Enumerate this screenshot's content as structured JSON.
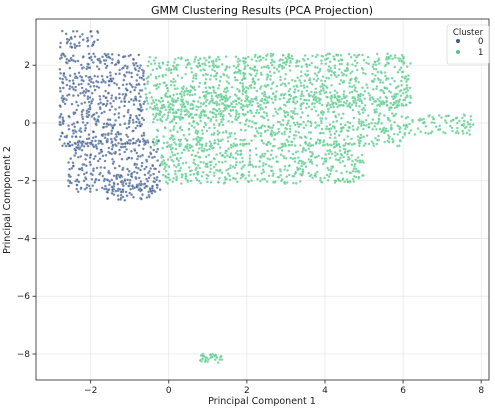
{
  "chart_data": {
    "type": "scatter",
    "title": "GMM Clustering Results (PCA Projection)",
    "xlabel": "Principal Component 1",
    "ylabel": "Principal Component 2",
    "xlim": [
      -3.4,
      8.2
    ],
    "ylim": [
      -8.9,
      3.6
    ],
    "xticks": [
      -2,
      0,
      2,
      4,
      6,
      8
    ],
    "yticks": [
      -8,
      -6,
      -4,
      -2,
      0,
      2
    ],
    "grid": true,
    "legend": {
      "title": "Cluster",
      "placement": "top-right"
    },
    "series": [
      {
        "name": "0",
        "color": "#3b5b8c",
        "regions": [
          {
            "x": [
              -2.8,
              -1.8
            ],
            "y": [
              2.6,
              3.2
            ]
          },
          {
            "x": [
              -2.8,
              -0.6
            ],
            "y": [
              -0.8,
              2.4
            ]
          },
          {
            "x": [
              -2.6,
              -0.2
            ],
            "y": [
              -2.4,
              -0.6
            ]
          },
          {
            "x": [
              -1.6,
              -0.4
            ],
            "y": [
              -2.7,
              -2.0
            ]
          }
        ]
      },
      {
        "name": "1",
        "color": "#4fc785",
        "regions": [
          {
            "x": [
              -0.6,
              2.0
            ],
            "y": [
              0.2,
              2.3
            ]
          },
          {
            "x": [
              -0.4,
              6.0
            ],
            "y": [
              -0.8,
              1.0
            ]
          },
          {
            "x": [
              1.8,
              6.2
            ],
            "y": [
              0.6,
              2.4
            ]
          },
          {
            "x": [
              -0.2,
              5.0
            ],
            "y": [
              -2.1,
              -0.7
            ]
          },
          {
            "x": [
              6.0,
              7.8
            ],
            "y": [
              -0.4,
              0.3
            ]
          },
          {
            "x": [
              0.8,
              1.4
            ],
            "y": [
              -8.3,
              -8.0
            ]
          }
        ]
      }
    ]
  }
}
